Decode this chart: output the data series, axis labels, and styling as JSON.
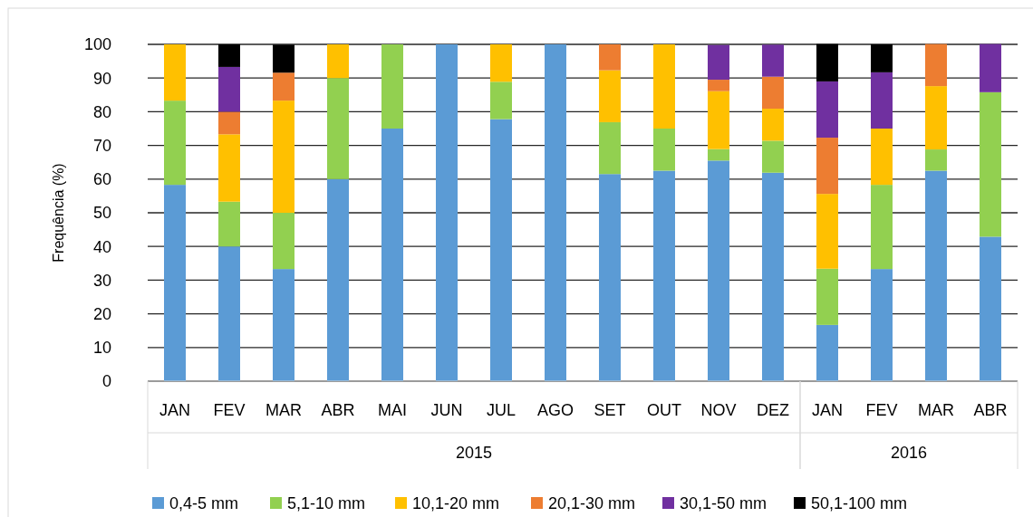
{
  "chart_data": {
    "type": "bar",
    "stacked": true,
    "ylabel": "Frequência (%)",
    "categories": [
      "JAN",
      "FEV",
      "MAR",
      "ABR",
      "MAI",
      "JUN",
      "JUL",
      "AGO",
      "SET",
      "OUT",
      "NOV",
      "DEZ",
      "JAN",
      "FEV",
      "MAR",
      "ABR"
    ],
    "annotations": [
      "2015",
      "2016"
    ],
    "ylim": [
      0,
      100
    ],
    "yticks": [
      0,
      10,
      20,
      30,
      40,
      50,
      60,
      70,
      80,
      90,
      100
    ],
    "grid": "y",
    "legend": "bottom",
    "series": [
      {
        "name": "0,4-5 mm",
        "color": "#5b9bd5",
        "values": [
          58.3,
          40,
          33.3,
          60,
          75,
          100,
          77.8,
          100,
          61.5,
          62.5,
          65.5,
          61.9,
          16.7,
          33.3,
          62.5,
          42.9
        ]
      },
      {
        "name": "5,1-10 mm",
        "color": "#92d050",
        "values": [
          25,
          13.3,
          16.7,
          30,
          25,
          0,
          11.1,
          0,
          15.4,
          12.5,
          3.4,
          9.5,
          16.7,
          25,
          6.3,
          42.9
        ]
      },
      {
        "name": "10,1-20 mm",
        "color": "#ffc000",
        "values": [
          16.7,
          20,
          33.3,
          10,
          0,
          0,
          11.1,
          0,
          15.4,
          25,
          17.2,
          9.5,
          22.2,
          16.7,
          18.8,
          0
        ]
      },
      {
        "name": "20,1-30 mm",
        "color": "#ed7d31",
        "values": [
          0,
          6.7,
          8.3,
          0,
          0,
          0,
          0,
          0,
          7.7,
          0,
          3.4,
          9.5,
          16.7,
          0,
          12.5,
          0
        ]
      },
      {
        "name": "30,1-50 mm",
        "color": "#7030a0",
        "values": [
          0,
          13.3,
          0,
          0,
          0,
          0,
          0,
          0,
          0,
          0,
          10.3,
          9.5,
          16.7,
          16.7,
          0,
          14.3
        ]
      },
      {
        "name": "50,1-100 mm",
        "color": "#000000",
        "values": [
          0,
          6.7,
          8.3,
          0,
          0,
          0,
          0,
          0,
          0,
          0,
          0,
          0,
          11.1,
          8.3,
          0,
          0
        ]
      }
    ]
  }
}
